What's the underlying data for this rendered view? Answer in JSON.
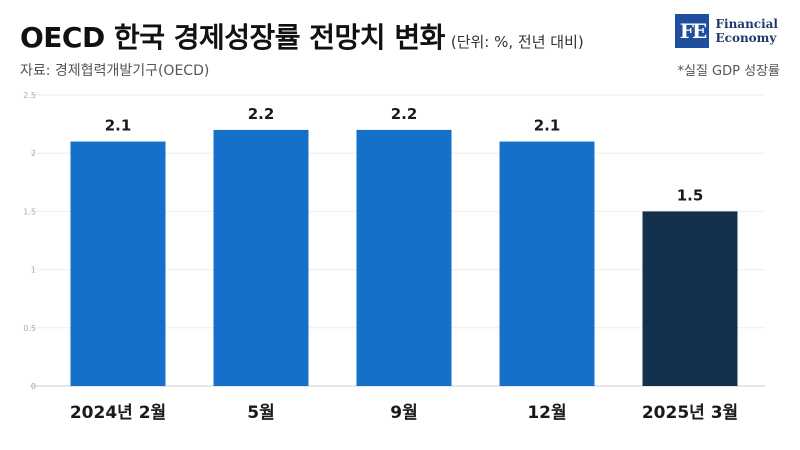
{
  "header": {
    "title": "OECD 한국 경제성장률 전망치 변화",
    "unit": "(단위: %, 전년 대비)",
    "source": "자료: 경제협력개발기구(OECD)",
    "note": "*실질 GDP 성장률"
  },
  "logo": {
    "mark": "FE",
    "line1": "Financial",
    "line2": "Economy"
  },
  "chart_data": {
    "type": "bar",
    "categories": [
      "2024년 2월",
      "5월",
      "9월",
      "12월",
      "2025년 3월"
    ],
    "values": [
      2.1,
      2.2,
      2.2,
      2.1,
      1.5
    ],
    "value_labels": [
      "2.1",
      "2.2",
      "2.2",
      "2.1",
      "1.5"
    ],
    "yticks": [
      "0",
      "0.5",
      "1",
      "1.5",
      "2",
      "2.5"
    ],
    "ylim": [
      0,
      2.5
    ],
    "colors": [
      "#1470c8",
      "#1470c8",
      "#1470c8",
      "#1470c8",
      "#14304f"
    ],
    "grid": true
  }
}
